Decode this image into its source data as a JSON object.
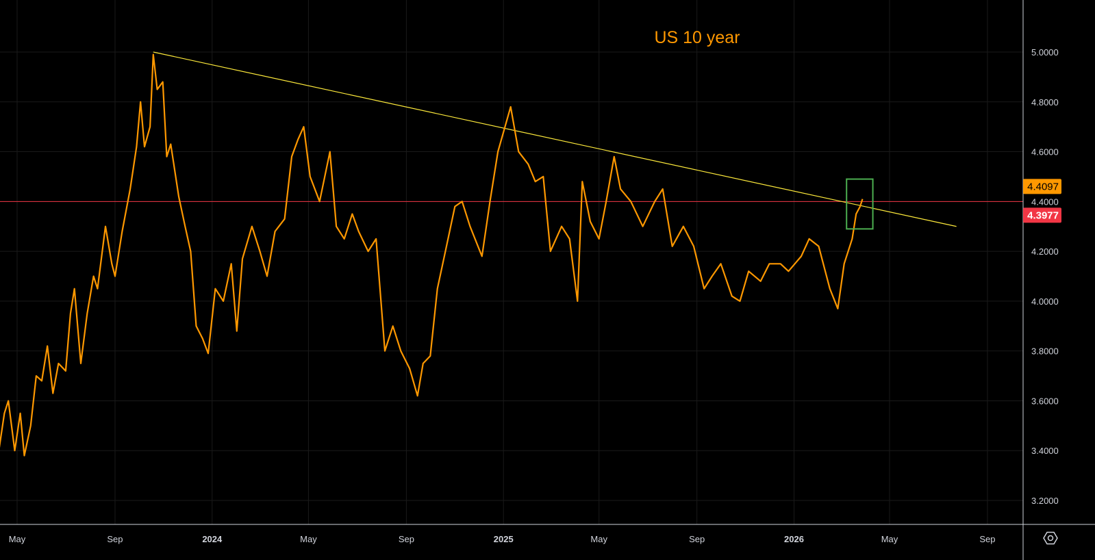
{
  "chart_data": {
    "type": "line",
    "title": "US 10 year",
    "xlabel": "",
    "ylabel": "",
    "ylim": [
      3.1,
      5.1
    ],
    "grid": true,
    "y_ticks": [
      "5.0000",
      "4.8000",
      "4.6000",
      "4.4000",
      "4.2000",
      "4.0000",
      "3.8000",
      "3.6000",
      "3.4000",
      "3.2000"
    ],
    "x_ticks": [
      {
        "label": "May",
        "date": "2023-05-01",
        "bold": false
      },
      {
        "label": "Sep",
        "date": "2023-09-01",
        "bold": false
      },
      {
        "label": "2024",
        "date": "2024-01-01",
        "bold": true
      },
      {
        "label": "May",
        "date": "2024-05-01",
        "bold": false
      },
      {
        "label": "Sep",
        "date": "2024-09-01",
        "bold": false
      },
      {
        "label": "2025",
        "date": "2025-01-01",
        "bold": true
      },
      {
        "label": "May",
        "date": "2025-05-01",
        "bold": false
      },
      {
        "label": "Sep",
        "date": "2025-09-01",
        "bold": false
      },
      {
        "label": "2026",
        "date": "2026-01-01",
        "bold": true
      },
      {
        "label": "May",
        "date": "2026-05-01",
        "bold": false
      },
      {
        "label": "Sep",
        "date": "2026-09-01",
        "bold": false
      }
    ],
    "series": [
      {
        "name": "US 10 year",
        "color": "#ff9800",
        "x": [
          "2023-04-08",
          "2023-04-15",
          "2023-04-20",
          "2023-04-28",
          "2023-05-05",
          "2023-05-10",
          "2023-05-18",
          "2023-05-25",
          "2023-06-01",
          "2023-06-08",
          "2023-06-15",
          "2023-06-22",
          "2023-07-01",
          "2023-07-07",
          "2023-07-12",
          "2023-07-20",
          "2023-07-28",
          "2023-08-05",
          "2023-08-10",
          "2023-08-20",
          "2023-08-28",
          "2023-09-01",
          "2023-09-10",
          "2023-09-20",
          "2023-09-28",
          "2023-10-03",
          "2023-10-08",
          "2023-10-15",
          "2023-10-19",
          "2023-10-24",
          "2023-10-31",
          "2023-11-05",
          "2023-11-10",
          "2023-11-20",
          "2023-11-28",
          "2023-12-05",
          "2023-12-12",
          "2023-12-20",
          "2023-12-27",
          "2024-01-05",
          "2024-01-15",
          "2024-01-25",
          "2024-02-01",
          "2024-02-08",
          "2024-02-20",
          "2024-03-01",
          "2024-03-10",
          "2024-03-20",
          "2024-04-01",
          "2024-04-10",
          "2024-04-18",
          "2024-04-25",
          "2024-05-03",
          "2024-05-15",
          "2024-05-28",
          "2024-06-05",
          "2024-06-15",
          "2024-06-25",
          "2024-07-03",
          "2024-07-15",
          "2024-07-25",
          "2024-08-05",
          "2024-08-15",
          "2024-08-25",
          "2024-09-05",
          "2024-09-15",
          "2024-09-22",
          "2024-10-01",
          "2024-10-10",
          "2024-10-20",
          "2024-11-01",
          "2024-11-10",
          "2024-11-20",
          "2024-12-05",
          "2024-12-15",
          "2024-12-25",
          "2025-01-10",
          "2025-01-20",
          "2025-02-01",
          "2025-02-10",
          "2025-02-20",
          "2025-03-01",
          "2025-03-15",
          "2025-03-25",
          "2025-04-04",
          "2025-04-10",
          "2025-04-20",
          "2025-05-01",
          "2025-05-10",
          "2025-05-20",
          "2025-05-28",
          "2025-06-10",
          "2025-06-25",
          "2025-07-10",
          "2025-07-20",
          "2025-08-01",
          "2025-08-15",
          "2025-08-28",
          "2025-09-10",
          "2025-09-20",
          "2025-10-01",
          "2025-10-15",
          "2025-10-25",
          "2025-11-05",
          "2025-11-20",
          "2025-12-01",
          "2025-12-15",
          "2025-12-25",
          "2026-01-10",
          "2026-01-20",
          "2026-02-01",
          "2026-02-15",
          "2026-02-25",
          "2026-03-05",
          "2026-03-15",
          "2026-03-20",
          "2026-03-25",
          "2026-03-28"
        ],
        "y": [
          3.4,
          3.55,
          3.6,
          3.4,
          3.55,
          3.38,
          3.5,
          3.7,
          3.68,
          3.82,
          3.63,
          3.75,
          3.72,
          3.95,
          4.05,
          3.75,
          3.95,
          4.1,
          4.05,
          4.3,
          4.15,
          4.1,
          4.28,
          4.45,
          4.62,
          4.8,
          4.62,
          4.7,
          4.99,
          4.85,
          4.88,
          4.58,
          4.63,
          4.42,
          4.3,
          4.2,
          3.9,
          3.85,
          3.79,
          4.05,
          4.0,
          4.15,
          3.88,
          4.17,
          4.3,
          4.2,
          4.1,
          4.28,
          4.33,
          4.58,
          4.65,
          4.7,
          4.5,
          4.4,
          4.6,
          4.3,
          4.25,
          4.35,
          4.28,
          4.2,
          4.25,
          3.8,
          3.9,
          3.8,
          3.73,
          3.62,
          3.75,
          3.78,
          4.05,
          4.2,
          4.38,
          4.4,
          4.3,
          4.18,
          4.4,
          4.6,
          4.78,
          4.6,
          4.55,
          4.48,
          4.5,
          4.2,
          4.3,
          4.25,
          4.0,
          4.48,
          4.32,
          4.25,
          4.4,
          4.58,
          4.45,
          4.4,
          4.3,
          4.4,
          4.45,
          4.22,
          4.3,
          4.22,
          4.05,
          4.1,
          4.15,
          4.02,
          4.0,
          4.12,
          4.08,
          4.15,
          4.15,
          4.12,
          4.18,
          4.25,
          4.22,
          4.05,
          3.97,
          4.15,
          4.25,
          4.35,
          4.38,
          4.41
        ]
      }
    ],
    "trendline": {
      "color": "#ffeb3b",
      "start": {
        "x": "2023-10-19",
        "y": 5.0
      },
      "end": {
        "x": "2026-07-24",
        "y": 4.3
      }
    },
    "horizontal_line": {
      "y": 4.4,
      "color": "#f23645"
    },
    "highlight_box": {
      "color": "#4caf50",
      "x0": "2026-03-08",
      "x1": "2026-04-10",
      "y0": 4.29,
      "y1": 4.49
    },
    "price_labels": [
      {
        "value": 4.4097,
        "text": "4.4097",
        "bg": "#ff9800",
        "fg": "#000000"
      },
      {
        "value": 4.3977,
        "text": "4.3977",
        "bg": "#f23645",
        "fg": "#ffffff"
      }
    ]
  },
  "toolbar": {
    "settings_icon": "settings-hexagon-icon"
  }
}
